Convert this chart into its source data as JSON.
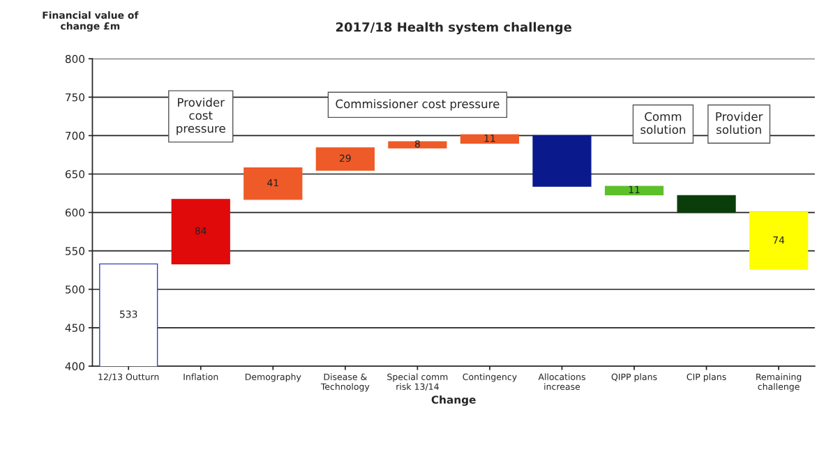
{
  "chart_data": {
    "type": "bar",
    "title": "2017/18 Health system challenge",
    "xlabel": "Change",
    "ylabel": "Financial value of\nchange £m",
    "categories": [
      "12/13 Outturn",
      "Inflation",
      "Demography",
      "Disease &\nTechnology",
      "Special comm\nrisk 13/14",
      "Contingency",
      "Allocations\nincrease",
      "QIPP plans",
      "CIP plans",
      "Remaining\nchallenge"
    ],
    "values": [
      533,
      84,
      41,
      29,
      8,
      11,
      -66,
      -11,
      -22,
      74
    ],
    "base": [
      0,
      533,
      617,
      655,
      684,
      690,
      700,
      634,
      622,
      526
    ],
    "colors": [
      "#ffffff",
      "#e00a0a",
      "#ee5a28",
      "#ee5a28",
      "#ee5a28",
      "#ee5a28",
      "#0a1a8c",
      "#5cc02a",
      "#0a3d0a",
      "#ffff00"
    ],
    "value_labels": [
      "533",
      "84",
      "41",
      "29",
      "8",
      "11",
      null,
      "11",
      null,
      "74"
    ],
    "annotations": [
      "Provider\ncost\npressure",
      "Commissioner cost pressure",
      "Comm\nsolution",
      "Provider\nsolution"
    ],
    "ylim": [
      400,
      800
    ],
    "yticks": [
      400,
      450,
      500,
      550,
      600,
      650,
      700,
      750,
      800
    ],
    "grid": "y",
    "legend": false
  }
}
